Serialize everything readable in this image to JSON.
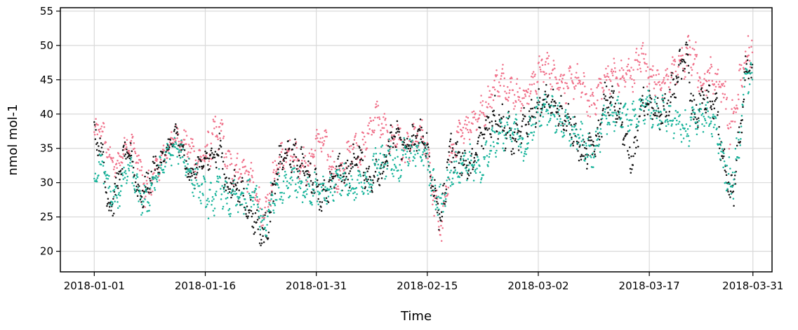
{
  "chart_data": {
    "type": "scatter",
    "title": "",
    "xlabel": "Time",
    "ylabel": "nmol mol-1",
    "x_tick_labels": [
      "2018-01-01",
      "2018-01-16",
      "2018-01-31",
      "2018-02-15",
      "2018-03-02",
      "2018-03-17",
      "2018-03-31"
    ],
    "x_tick_dates": [
      "2018-01-01",
      "2018-01-16",
      "2018-01-31",
      "2018-02-15",
      "2018-03-02",
      "2018-03-17",
      "2018-03-31"
    ],
    "y_ticks": [
      20,
      25,
      30,
      35,
      40,
      45,
      50,
      55
    ],
    "xlim": [
      "2017-12-27T10:00",
      "2018-04-02T14:00"
    ],
    "ylim": [
      17,
      55.5
    ],
    "grid": true,
    "legend": "none",
    "colors": {
      "pink": "#f0718a",
      "teal": "#16b39a",
      "black": "#111111",
      "grid": "#d9d9d9",
      "axis": "#000000"
    },
    "series": [
      {
        "color": "#f0718a",
        "x": [
          "2018-01-01",
          "2018-01-02",
          "2018-01-03",
          "2018-01-04",
          "2018-01-05",
          "2018-01-06",
          "2018-01-07",
          "2018-01-08",
          "2018-01-09",
          "2018-01-10",
          "2018-01-11",
          "2018-01-12",
          "2018-01-13",
          "2018-01-14",
          "2018-01-15",
          "2018-01-16",
          "2018-01-17",
          "2018-01-18",
          "2018-01-19",
          "2018-01-20",
          "2018-01-21",
          "2018-01-22",
          "2018-01-23",
          "2018-01-24",
          "2018-01-25",
          "2018-01-26",
          "2018-01-27",
          "2018-01-28",
          "2018-01-29",
          "2018-01-30",
          "2018-01-31",
          "2018-02-01",
          "2018-02-02",
          "2018-02-03",
          "2018-02-04",
          "2018-02-05",
          "2018-02-06",
          "2018-02-07",
          "2018-02-08",
          "2018-02-09",
          "2018-02-10",
          "2018-02-11",
          "2018-02-12",
          "2018-02-13",
          "2018-02-14",
          "2018-02-15",
          "2018-02-16",
          "2018-02-17",
          "2018-02-18",
          "2018-02-19",
          "2018-02-20",
          "2018-02-21",
          "2018-02-22",
          "2018-02-23",
          "2018-02-24",
          "2018-02-25",
          "2018-02-26",
          "2018-02-27",
          "2018-02-28",
          "2018-03-01",
          "2018-03-02",
          "2018-03-03",
          "2018-03-04",
          "2018-03-05",
          "2018-03-06",
          "2018-03-07",
          "2018-03-08",
          "2018-03-09",
          "2018-03-10",
          "2018-03-11",
          "2018-03-12",
          "2018-03-13",
          "2018-03-14",
          "2018-03-15",
          "2018-03-16",
          "2018-03-17",
          "2018-03-18",
          "2018-03-19",
          "2018-03-20",
          "2018-03-21",
          "2018-03-22",
          "2018-03-23",
          "2018-03-24",
          "2018-03-25",
          "2018-03-26",
          "2018-03-27",
          "2018-03-28",
          "2018-03-29",
          "2018-03-30",
          "2018-03-31"
        ],
        "y": [
          37,
          38,
          34,
          32,
          35,
          36,
          33,
          28,
          31,
          33,
          35,
          37,
          36,
          35,
          33,
          34,
          36,
          38,
          33,
          32,
          32,
          31,
          28,
          24,
          30,
          33,
          35,
          34,
          33,
          32,
          36,
          36,
          33,
          30,
          33,
          36,
          34,
          37,
          40,
          38,
          36,
          37,
          34,
          36,
          37,
          35,
          27,
          23,
          33,
          36,
          38,
          39,
          40,
          41,
          44,
          45,
          44,
          43,
          42,
          44,
          46,
          47,
          46,
          45,
          44,
          45,
          44,
          41,
          43,
          45,
          46,
          45,
          46,
          46,
          49,
          46,
          45,
          44,
          46,
          47,
          48,
          49,
          44,
          46,
          45,
          44,
          37,
          43,
          48,
          51
        ],
        "spread": [
          1.5,
          1.5,
          1.5,
          1.5,
          1.5,
          1.5,
          1.5,
          2.5,
          2,
          1.5,
          1.5,
          1.5,
          1.5,
          2,
          2,
          2,
          3,
          2,
          2,
          2,
          2,
          2,
          2,
          2.5,
          2,
          2,
          2,
          2,
          2,
          2,
          2,
          2,
          2,
          2,
          2,
          2,
          2,
          2,
          2,
          2,
          2,
          2,
          2,
          2,
          2,
          2,
          2.5,
          2,
          2,
          2,
          2,
          2,
          2,
          2,
          2,
          2,
          2,
          2,
          2,
          2,
          2,
          2,
          2,
          2,
          2,
          2,
          2,
          2,
          2,
          2,
          2,
          2,
          2,
          2,
          2.5,
          2,
          2,
          2,
          2,
          2,
          2.5,
          2.5,
          2,
          2,
          2,
          2,
          3,
          2.5,
          2.5,
          2.5
        ]
      },
      {
        "color": "#111111",
        "x": [
          "2018-01-01",
          "2018-01-02",
          "2018-01-03",
          "2018-01-04",
          "2018-01-05",
          "2018-01-06",
          "2018-01-07",
          "2018-01-08",
          "2018-01-09",
          "2018-01-10",
          "2018-01-11",
          "2018-01-12",
          "2018-01-13",
          "2018-01-14",
          "2018-01-15",
          "2018-01-16",
          "2018-01-17",
          "2018-01-18",
          "2018-01-19",
          "2018-01-20",
          "2018-01-21",
          "2018-01-22",
          "2018-01-23",
          "2018-01-24",
          "2018-01-25",
          "2018-01-26",
          "2018-01-27",
          "2018-01-28",
          "2018-01-29",
          "2018-01-30",
          "2018-01-31",
          "2018-02-01",
          "2018-02-02",
          "2018-02-03",
          "2018-02-04",
          "2018-02-05",
          "2018-02-06",
          "2018-02-07",
          "2018-02-08",
          "2018-02-09",
          "2018-02-10",
          "2018-02-11",
          "2018-02-12",
          "2018-02-13",
          "2018-02-14",
          "2018-02-15",
          "2018-02-16",
          "2018-02-17",
          "2018-02-18",
          "2018-02-19",
          "2018-02-20",
          "2018-02-21",
          "2018-02-22",
          "2018-02-23",
          "2018-02-24",
          "2018-02-25",
          "2018-02-26",
          "2018-02-27",
          "2018-02-28",
          "2018-03-01",
          "2018-03-02",
          "2018-03-03",
          "2018-03-04",
          "2018-03-05",
          "2018-03-06",
          "2018-03-07",
          "2018-03-08",
          "2018-03-09",
          "2018-03-10",
          "2018-03-11",
          "2018-03-12",
          "2018-03-13",
          "2018-03-14",
          "2018-03-15",
          "2018-03-16",
          "2018-03-17",
          "2018-03-18",
          "2018-03-19",
          "2018-03-20",
          "2018-03-21",
          "2018-03-22",
          "2018-03-23",
          "2018-03-24",
          "2018-03-25",
          "2018-03-26",
          "2018-03-27",
          "2018-03-28",
          "2018-03-29",
          "2018-03-30",
          "2018-03-31"
        ],
        "y": [
          37,
          35,
          26,
          29,
          34,
          34,
          28,
          29,
          32,
          33,
          35,
          37,
          34,
          31,
          32,
          33,
          34,
          35,
          29,
          30,
          28,
          26,
          24,
          22,
          27,
          33,
          34,
          34,
          33,
          31,
          30,
          27,
          30,
          32,
          31,
          33,
          34,
          30,
          32,
          31,
          36,
          37,
          35,
          36,
          37,
          35,
          28,
          25,
          35,
          34,
          33,
          32,
          36,
          38,
          40,
          39,
          37,
          36,
          38,
          40,
          41,
          42,
          41,
          40,
          39,
          37,
          34,
          35,
          36,
          42,
          42,
          40,
          35,
          34,
          42,
          41,
          40,
          40,
          43,
          46,
          49,
          39,
          42,
          42,
          41,
          33,
          27,
          34,
          46,
          47
        ],
        "spread": [
          1.5,
          1.5,
          2,
          2,
          1.5,
          1.5,
          2,
          2,
          2,
          1.5,
          1.5,
          1.5,
          1.5,
          2,
          2,
          2,
          2,
          2,
          2,
          2,
          2,
          2,
          2,
          2.5,
          2,
          2,
          2,
          2,
          2,
          2,
          2,
          2.5,
          2,
          2,
          2,
          2,
          2,
          2,
          2,
          2,
          2,
          2,
          2,
          2,
          2,
          2,
          2.5,
          2.5,
          2.5,
          2,
          2,
          2,
          2,
          2,
          2.5,
          2.5,
          2.5,
          2,
          2,
          2,
          2,
          2,
          2,
          2,
          2,
          2,
          2,
          2,
          2,
          2,
          2,
          2,
          2,
          2.5,
          2,
          2,
          2,
          2,
          2,
          2.5,
          2.5,
          2.5,
          2,
          2,
          2,
          2,
          3,
          2.5,
          2,
          2
        ]
      },
      {
        "color": "#16b39a",
        "x": [
          "2018-01-01",
          "2018-01-02",
          "2018-01-03",
          "2018-01-04",
          "2018-01-05",
          "2018-01-06",
          "2018-01-07",
          "2018-01-08",
          "2018-01-09",
          "2018-01-10",
          "2018-01-11",
          "2018-01-12",
          "2018-01-13",
          "2018-01-14",
          "2018-01-15",
          "2018-01-16",
          "2018-01-17",
          "2018-01-18",
          "2018-01-19",
          "2018-01-20",
          "2018-01-21",
          "2018-01-22",
          "2018-01-23",
          "2018-01-24",
          "2018-01-25",
          "2018-01-26",
          "2018-01-27",
          "2018-01-28",
          "2018-01-29",
          "2018-01-30",
          "2018-01-31",
          "2018-02-01",
          "2018-02-02",
          "2018-02-03",
          "2018-02-04",
          "2018-02-05",
          "2018-02-06",
          "2018-02-07",
          "2018-02-08",
          "2018-02-09",
          "2018-02-10",
          "2018-02-11",
          "2018-02-12",
          "2018-02-13",
          "2018-02-14",
          "2018-02-15",
          "2018-02-16",
          "2018-02-17",
          "2018-02-18",
          "2018-02-19",
          "2018-02-20",
          "2018-02-21",
          "2018-02-22",
          "2018-02-23",
          "2018-02-24",
          "2018-02-25",
          "2018-02-26",
          "2018-02-27",
          "2018-02-28",
          "2018-03-01",
          "2018-03-02",
          "2018-03-03",
          "2018-03-04",
          "2018-03-05",
          "2018-03-06",
          "2018-03-07",
          "2018-03-08",
          "2018-03-09",
          "2018-03-10",
          "2018-03-11",
          "2018-03-12",
          "2018-03-13",
          "2018-03-14",
          "2018-03-15",
          "2018-03-16",
          "2018-03-17",
          "2018-03-18",
          "2018-03-19",
          "2018-03-20",
          "2018-03-21",
          "2018-03-22",
          "2018-03-23",
          "2018-03-24",
          "2018-03-25",
          "2018-03-26",
          "2018-03-27",
          "2018-03-28",
          "2018-03-29",
          "2018-03-30",
          "2018-03-31"
        ],
        "y": [
          31,
          33,
          29,
          27,
          31,
          32,
          28,
          27,
          30,
          32,
          34,
          35,
          34,
          31,
          30,
          28,
          27,
          30,
          27,
          28,
          27,
          29,
          27,
          23,
          28,
          29,
          30,
          31,
          29,
          28,
          29,
          29,
          29,
          31,
          30,
          28,
          31,
          29,
          33,
          33,
          34,
          32,
          35,
          34,
          35,
          33,
          28,
          27,
          31,
          32,
          33,
          33,
          31,
          34,
          36,
          37,
          38,
          38,
          34,
          38,
          40,
          41,
          40,
          39,
          38,
          37,
          36,
          34,
          36,
          39,
          40,
          40,
          40,
          39,
          41,
          41,
          40,
          40,
          39,
          39,
          37,
          39,
          40,
          39,
          38,
          33,
          30,
          34,
          46,
          45
        ],
        "spread": [
          1.5,
          1.5,
          2,
          2,
          1.5,
          1.5,
          2,
          2,
          2,
          1.5,
          1.5,
          1.5,
          1.5,
          2,
          2,
          2,
          2.5,
          2,
          2,
          2,
          2,
          2,
          2,
          2,
          2,
          2,
          2,
          2,
          2,
          2,
          2,
          2,
          2,
          2,
          2,
          2,
          2,
          2,
          2,
          2,
          2,
          2,
          2,
          2,
          2,
          2,
          2.5,
          2,
          2,
          2,
          2,
          2,
          2,
          2,
          2,
          2,
          2,
          2,
          2,
          2,
          2,
          2,
          2,
          2,
          2,
          2,
          2,
          2,
          2,
          2,
          2,
          2,
          2,
          2,
          2,
          2,
          2,
          2,
          2,
          2,
          2.5,
          2.5,
          2,
          2,
          2,
          2.5,
          3,
          2.5,
          2,
          2
        ]
      }
    ]
  }
}
